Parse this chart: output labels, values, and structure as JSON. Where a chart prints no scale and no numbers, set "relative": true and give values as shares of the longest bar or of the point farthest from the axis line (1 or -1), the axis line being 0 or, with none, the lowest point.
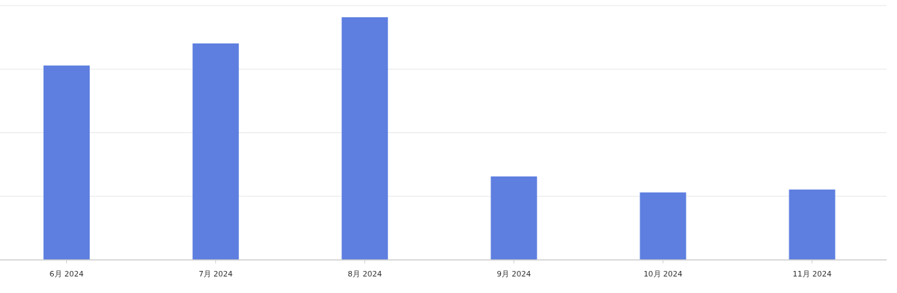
{
  "chart_data": {
    "type": "bar",
    "relative": true,
    "grid": "y",
    "color": "#5e7fe0",
    "categories": [
      "6月 2024",
      "7月 2024",
      "8月 2024",
      "9月 2024",
      "10月 2024",
      "11月 2024"
    ],
    "values": [
      0.801,
      0.892,
      1,
      0.344,
      0.278,
      0.29
    ]
  }
}
